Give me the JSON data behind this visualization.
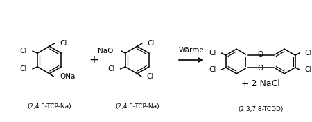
{
  "background_color": "#ffffff",
  "line_color": "#000000",
  "label1": "(2,4,5-TCP-Na)",
  "label2": "(2,4,5-TCP-Na)",
  "label3": "(2,3,7,8-TCDD)",
  "arrow_label": "Wärme",
  "nacl_text": "+ 2 NaCl",
  "font_size_labels": 6.5,
  "font_size_atoms": 7.5,
  "font_size_arrow": 7.5,
  "font_size_nacl": 9.0,
  "fig_width": 4.5,
  "fig_height": 1.77,
  "dpi": 100
}
